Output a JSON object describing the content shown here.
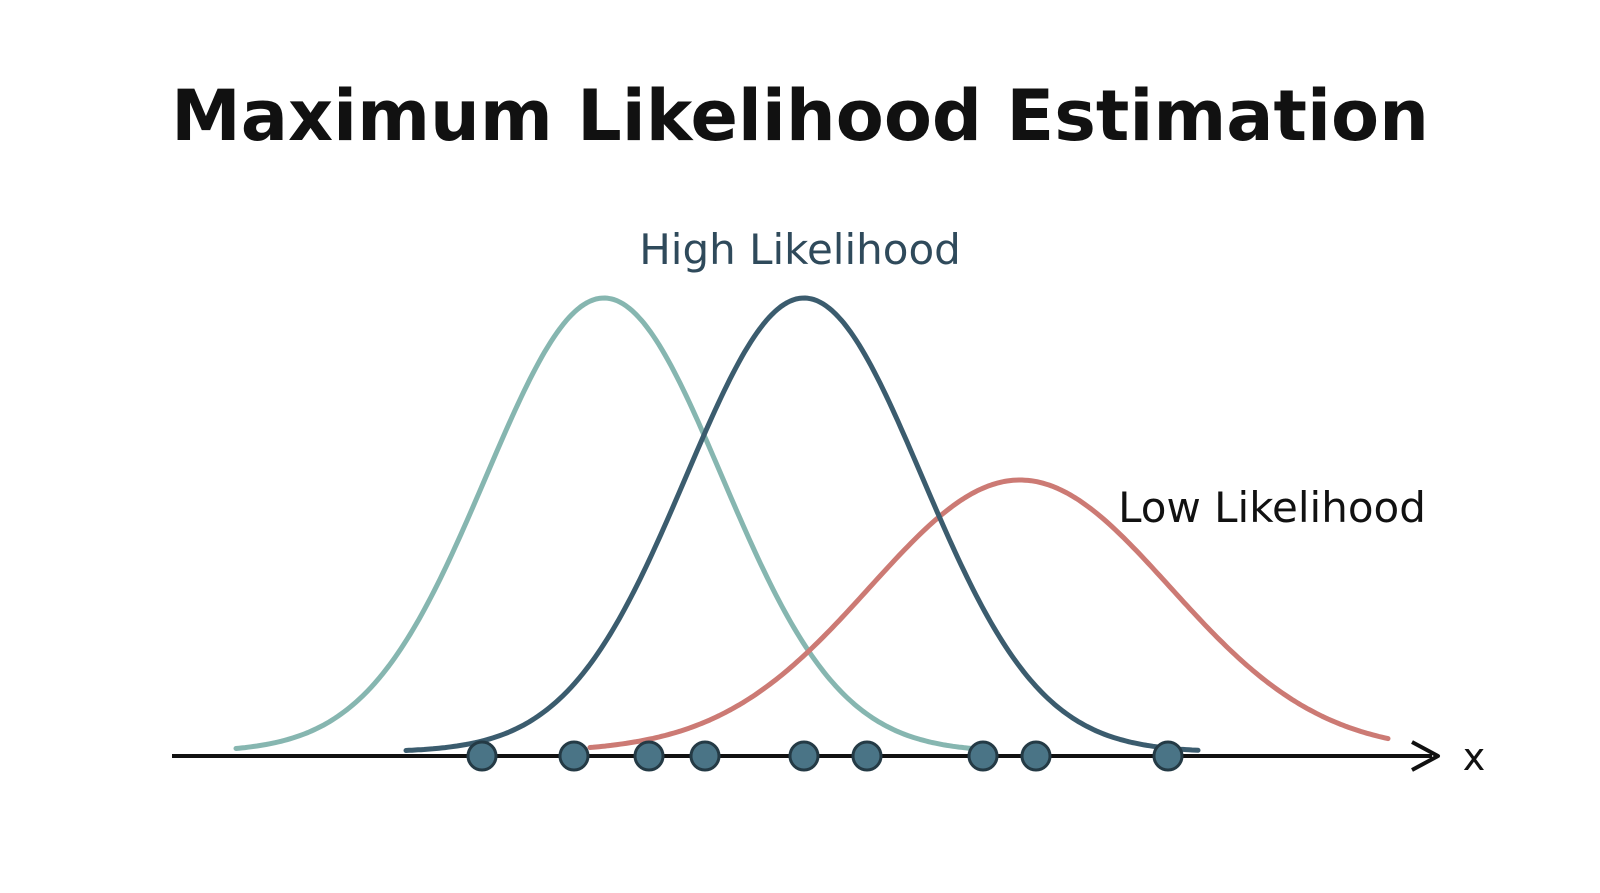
{
  "title": "Maximum Likelihood Estimation",
  "labels": {
    "high": "High Likelihood",
    "low": "Low Likelihood",
    "x_axis": "x"
  },
  "colors": {
    "left_curve": "#86b6b0",
    "middle_curve": "#3b5c6e",
    "right_curve": "#cc7a74",
    "points_fill": "#4a7486",
    "points_stroke": "#243a45",
    "axis": "#111111",
    "high_label": "#2f4a5b",
    "low_label": "#111111"
  }
}
